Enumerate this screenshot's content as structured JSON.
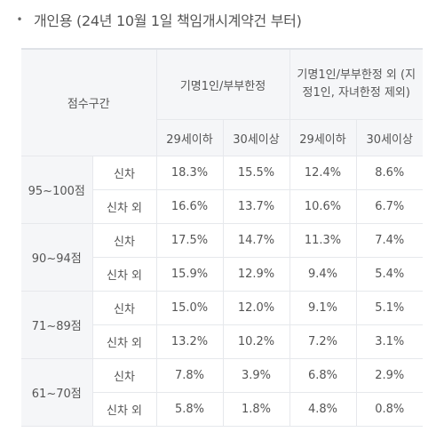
{
  "heading": {
    "bullet": "•",
    "title": "개인용 (24년 10월 1일 책임개시계약건 부터)"
  },
  "table": {
    "score_header": "점수구간",
    "group_headers": [
      "기명1인/부부한정",
      "기명1인/부부한정 외 (지정1인, 자녀한정 제외)"
    ],
    "age_headers": [
      "29세이하",
      "30세이상",
      "29세이하",
      "30세이상"
    ],
    "bands": [
      {
        "label": "95~100점",
        "rows": [
          {
            "type": "신차",
            "values": [
              "18.3%",
              "15.5%",
              "12.4%",
              "8.6%"
            ]
          },
          {
            "type": "신차 외",
            "values": [
              "16.6%",
              "13.7%",
              "10.6%",
              "6.7%"
            ]
          }
        ]
      },
      {
        "label": "90~94점",
        "rows": [
          {
            "type": "신차",
            "values": [
              "17.5%",
              "14.7%",
              "11.3%",
              "7.4%"
            ]
          },
          {
            "type": "신차 외",
            "values": [
              "15.9%",
              "12.9%",
              "9.4%",
              "5.4%"
            ]
          }
        ]
      },
      {
        "label": "71~89점",
        "rows": [
          {
            "type": "신차",
            "values": [
              "15.0%",
              "12.0%",
              "9.1%",
              "5.1%"
            ]
          },
          {
            "type": "신차 외",
            "values": [
              "13.2%",
              "10.2%",
              "7.2%",
              "3.1%"
            ]
          }
        ]
      },
      {
        "label": "61~70점",
        "rows": [
          {
            "type": "신차",
            "values": [
              "7.8%",
              "3.9%",
              "6.8%",
              "2.9%"
            ]
          },
          {
            "type": "신차 외",
            "values": [
              "5.8%",
              "1.8%",
              "4.8%",
              "0.8%"
            ]
          }
        ]
      }
    ]
  }
}
